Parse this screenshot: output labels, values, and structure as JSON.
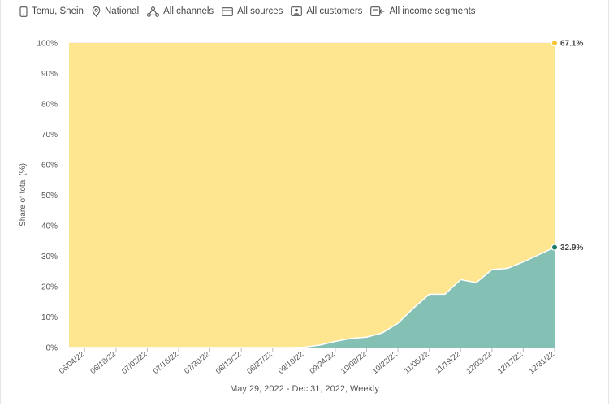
{
  "filters": [
    {
      "icon": "device-icon",
      "label": "Temu, Shein"
    },
    {
      "icon": "location-pin-icon",
      "label": "National"
    },
    {
      "icon": "channels-icon",
      "label": "All channels"
    },
    {
      "icon": "card-icon",
      "label": "All sources"
    },
    {
      "icon": "customer-icon",
      "label": "All customers"
    },
    {
      "icon": "income-icon",
      "label": "All income segments"
    }
  ],
  "colors": {
    "top_series": "#fde68f",
    "bottom_series": "#85c0b4",
    "bottom_line": "#ffffff",
    "top_marker": "#f6c332",
    "bottom_marker": "#1f7a6a",
    "grid": "#e5e5e5"
  },
  "chart_data": {
    "type": "area",
    "stacked": true,
    "percent": true,
    "ylabel": "Share of total (%)",
    "xlabel": "May 29, 2022 - Dec 31, 2022, Weekly",
    "ylim": [
      0,
      100
    ],
    "yticks": [
      "0%",
      "10%",
      "20%",
      "30%",
      "40%",
      "50%",
      "60%",
      "70%",
      "80%",
      "90%",
      "100%"
    ],
    "x": [
      "05/29/22",
      "06/04/22",
      "06/11/22",
      "06/18/22",
      "06/25/22",
      "07/02/22",
      "07/09/22",
      "07/16/22",
      "07/23/22",
      "07/30/22",
      "08/06/22",
      "08/13/22",
      "08/20/22",
      "08/27/22",
      "09/03/22",
      "09/10/22",
      "09/17/22",
      "09/24/22",
      "10/01/22",
      "10/08/22",
      "10/15/22",
      "10/22/22",
      "10/29/22",
      "11/05/22",
      "11/12/22",
      "11/19/22",
      "11/26/22",
      "12/03/22",
      "12/10/22",
      "12/17/22",
      "12/24/22",
      "12/31/22"
    ],
    "xtick_labels": [
      "06/04/22",
      "06/18/22",
      "07/02/22",
      "07/16/22",
      "07/30/22",
      "08/13/22",
      "08/27/22",
      "09/10/22",
      "09/24/22",
      "10/08/22",
      "10/22/22",
      "11/05/22",
      "11/19/22",
      "12/03/22",
      "12/17/22",
      "12/31/22"
    ],
    "series": [
      {
        "values": [
          0,
          0,
          0,
          0,
          0,
          0,
          0,
          0,
          0,
          0,
          0,
          0,
          0,
          0,
          0,
          0.1,
          0.8,
          2.0,
          3.0,
          3.4,
          4.8,
          8.0,
          13.0,
          17.5,
          17.5,
          22.3,
          21.3,
          25.6,
          26.0,
          28.1,
          30.5,
          32.9
        ]
      },
      {
        "values": [
          100,
          100,
          100,
          100,
          100,
          100,
          100,
          100,
          100,
          100,
          100,
          100,
          100,
          100,
          100,
          99.9,
          99.2,
          98.0,
          97.0,
          96.6,
          95.2,
          92.0,
          87.0,
          82.5,
          82.5,
          77.7,
          78.7,
          74.4,
          74.0,
          71.9,
          69.5,
          67.1
        ]
      }
    ],
    "end_labels": [
      "32.9%",
      "67.1%"
    ],
    "grid": true,
    "legend": "none"
  }
}
